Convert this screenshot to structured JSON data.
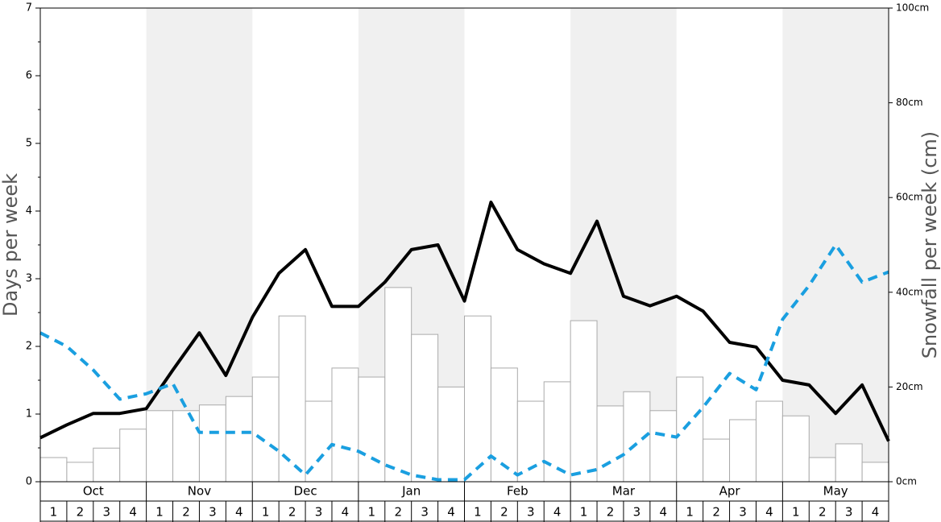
{
  "chart_data": {
    "type": "combo",
    "ylabel": "Days per week",
    "y2label": "Snowfall per week (cm)",
    "months": [
      "Oct",
      "Nov",
      "Dec",
      "Jan",
      "Feb",
      "Mar",
      "Apr",
      "May"
    ],
    "week_labels": [
      "1",
      "2",
      "3",
      "4"
    ],
    "shaded_months": [
      1,
      3,
      5,
      7
    ],
    "shade_color": "#f0f0f0",
    "ylim": [
      0,
      7
    ],
    "yticks": [
      0,
      1,
      2,
      3,
      4,
      5,
      6,
      7
    ],
    "y2lim": [
      0,
      100
    ],
    "y2ticks": [
      {
        "value": 0,
        "label": "0cm"
      },
      {
        "value": 20,
        "label": "20cm"
      },
      {
        "value": 40,
        "label": "40cm"
      },
      {
        "value": 60,
        "label": "60cm"
      },
      {
        "value": 80,
        "label": "80cm"
      },
      {
        "value": 100,
        "label": "100cm"
      }
    ],
    "series": [
      {
        "type": "bar",
        "axis": "y2",
        "color": "#ffffff",
        "stroke": "#aaaaaa",
        "values": [
          5.1,
          4.1,
          7.1,
          11.1,
          15,
          15,
          16.2,
          18,
          22.1,
          35,
          17,
          24,
          22.1,
          41,
          31.1,
          20,
          35,
          24,
          17,
          21.1,
          34,
          16,
          19,
          15,
          22.1,
          9,
          13.1,
          17,
          13.9,
          5.1,
          8,
          4.1
        ]
      },
      {
        "type": "line",
        "color": "#000000",
        "dashed": false,
        "values": [
          0.65,
          0.84,
          1.01,
          1.01,
          1.08,
          1.65,
          2.2,
          1.57,
          2.43,
          3.08,
          3.43,
          2.59,
          2.59,
          2.95,
          3.43,
          3.5,
          2.67,
          4.13,
          3.43,
          3.22,
          3.08,
          3.85,
          2.74,
          2.6,
          2.74,
          2.52,
          2.06,
          1.99,
          1.5,
          1.43,
          1.01,
          1.43,
          0.6
        ]
      },
      {
        "type": "line",
        "color": "#1a9fe0",
        "dashed": true,
        "values": [
          2.2,
          2.0,
          1.65,
          1.22,
          1.3,
          1.45,
          0.73,
          0.73,
          0.73,
          0.45,
          0.1,
          0.55,
          0.45,
          0.25,
          0.1,
          0.03,
          0.03,
          0.38,
          0.1,
          0.3,
          0.1,
          0.18,
          0.4,
          0.73,
          0.66,
          1.1,
          1.6,
          1.36,
          2.4,
          2.9,
          3.5,
          2.95,
          3.1
        ]
      }
    ]
  }
}
